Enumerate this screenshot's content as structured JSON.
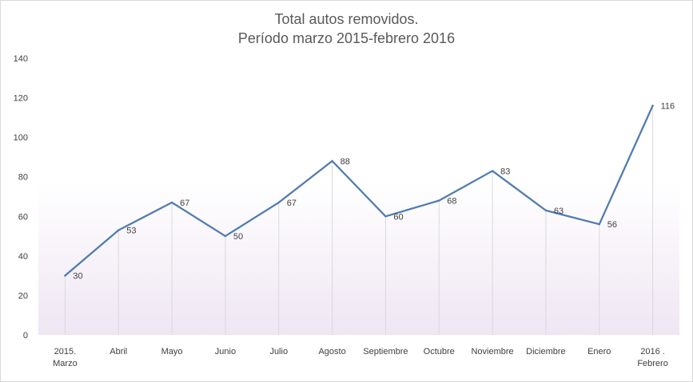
{
  "chart_data": {
    "type": "line",
    "title": "Total autos removidos.",
    "subtitle": "Período marzo 2015-febrero 2016",
    "categories": [
      [
        "2015.",
        "Marzo"
      ],
      [
        "Abril"
      ],
      [
        "Mayo"
      ],
      [
        "Junio"
      ],
      [
        "Julio"
      ],
      [
        "Agosto"
      ],
      [
        "Septiembre"
      ],
      [
        "Octubre"
      ],
      [
        "Noviembre"
      ],
      [
        "Diciembre"
      ],
      [
        "Enero"
      ],
      [
        "2016 .",
        "Febrero"
      ]
    ],
    "values": [
      30,
      53,
      67,
      50,
      67,
      88,
      60,
      68,
      83,
      63,
      56,
      116
    ],
    "ylim": [
      0,
      140
    ],
    "yticks": [
      0,
      20,
      40,
      60,
      80,
      100,
      120,
      140
    ],
    "grid": false,
    "drop_lines": true,
    "data_labels": true,
    "legend": "none",
    "colors": {
      "line": "#4f7bb0",
      "drop_line": "#d9d9d9",
      "text": "#404040",
      "title": "#595959",
      "plot_gradient_top": "#ffffff",
      "plot_gradient_bottom": "#efe6f3"
    }
  }
}
